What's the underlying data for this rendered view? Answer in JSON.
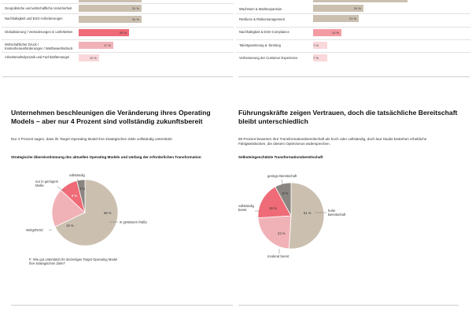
{
  "colors": {
    "beige": "#cbc0b0",
    "beige_dark": "#b5a898",
    "pink_light": "#f1b2b7",
    "pink_mid": "#f39ba3",
    "red": "#ee6b77",
    "dark_red": "#e35560",
    "gray": "#8a8580",
    "leader": "#777777"
  },
  "left_bars": [
    {
      "label": "Geopolitische und wirtschaftliche Unsicherheit",
      "value": 31,
      "value_label": "31 %"
    },
    {
      "label": "Nachhaltigkeit und ESG-Anforderungen",
      "value": 31,
      "value_label": "31 %"
    },
    {
      "label": "Globalisierung / Veränderungen in Lieferketten",
      "value": 25,
      "value_label": "25 %"
    },
    {
      "label": "Wirtschaftlicher Druck / Kostenherausforderungen / Wettbewerbsdruck",
      "value": 17,
      "value_label": "17 %"
    },
    {
      "label": "Arbeitsmarktdynamik und Fachkräftemangel",
      "value": 10,
      "value_label": "10 %"
    }
  ],
  "right_bars": [
    {
      "label": "Wachstum & Marktexpansion",
      "value": 24,
      "value_label": "24 %"
    },
    {
      "label": "Resilienz & Risikomanagement",
      "value": 21,
      "value_label": "21 %"
    },
    {
      "label": "Nachhaltigkeit & ESG-Compliance",
      "value": 14,
      "value_label": "14 %"
    },
    {
      "label": "Talentgewinnung & -bindung",
      "value": 7,
      "value_label": "7 %"
    },
    {
      "label": "Verbesserung der Customer Experience",
      "value": 7,
      "value_label": "7 %"
    }
  ],
  "left_section": {
    "heading": "Unternehmen beschleunigen die Veränderung ihres Operating Models – aber nur 4 Prozent sind vollständig zukunftsbereit",
    "body": "Nur 4 Prozent sagen, dass ihr Target Operating Model ihre strategischen Ziele vollständig unterstützt.",
    "chart_title": "Strategische Übereinstimmung des aktuellen Operating Models und Umfang der erforderlichen Transformation",
    "footnote": "F: Wie gut unterstützt Ihr derzeitiges Target Operating Model Ihre strategischen Ziele?"
  },
  "right_section": {
    "heading": "Führungskräfte zeigen Vertrauen, doch die tatsächliche Bereitschaft bleibt unterschiedlich",
    "body": "69 Prozent bewerten ihre Transformationsbereitschaft als hoch oder vollständig, doch laut Studie bestehen erhebliche Fähigkeitslücken, die diesem Optimismus widersprechen.",
    "chart_title": "Selbsteingeschätzte Transformationsbereitschaft"
  },
  "chart_data": [
    {
      "type": "bar",
      "orientation": "horizontal",
      "title": "",
      "categories": [
        "Geopolitische und wirtschaftliche Unsicherheit",
        "Nachhaltigkeit und ESG-Anforderungen",
        "Globalisierung / Veränderungen in Lieferketten",
        "Wirtschaftlicher Druck / Kostenherausforderungen / Wettbewerbsdruck",
        "Arbeitsmarktdynamik und Fachkräftemangel"
      ],
      "values": [
        31,
        31,
        25,
        17,
        10
      ],
      "unit": "%"
    },
    {
      "type": "bar",
      "orientation": "horizontal",
      "title": "",
      "categories": [
        "Wachstum & Marktexpansion",
        "Resilienz & Risikomanagement",
        "Nachhaltigkeit & ESG-Compliance",
        "Talentgewinnung & -bindung",
        "Verbesserung der Customer Experience"
      ],
      "values": [
        24,
        21,
        14,
        7,
        7
      ],
      "unit": "%"
    },
    {
      "type": "pie",
      "title": "Strategische Übereinstimmung des aktuellen Operating Models und Umfang der erforderlichen Transformation",
      "slices": [
        {
          "name": "in gewissem Maße",
          "value": 68,
          "label": "68 %"
        },
        {
          "name": "weitgehend",
          "value": 19,
          "label": "19 %"
        },
        {
          "name": "nur in geringem Maße",
          "value": 9,
          "label": "9 %"
        },
        {
          "name": "vollständig",
          "value": 4,
          "label": "4 %"
        }
      ]
    },
    {
      "type": "pie",
      "title": "Selbsteingeschätzte Transformationsbereitschaft",
      "slices": [
        {
          "name": "hohe Bereitschaft",
          "value": 51,
          "label": "51 %"
        },
        {
          "name": "moderat bereit",
          "value": 23,
          "label": "23 %"
        },
        {
          "name": "vollständig bereit",
          "value": 18,
          "label": "18 %"
        },
        {
          "name": "geringe Bereitschaft",
          "value": 8,
          "label": "8 %"
        }
      ]
    }
  ]
}
